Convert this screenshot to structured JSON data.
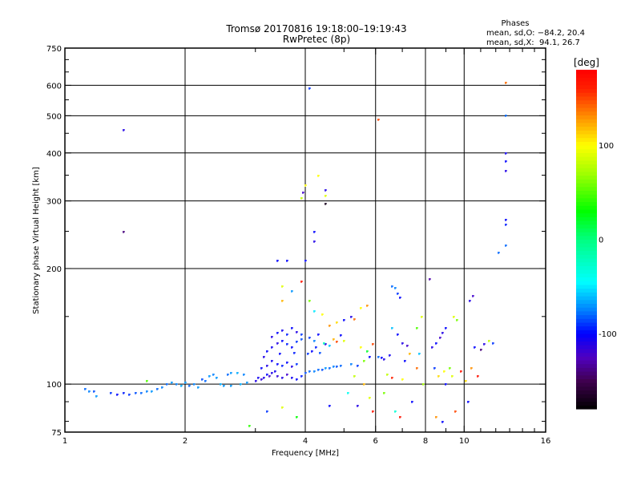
{
  "chart_data": {
    "type": "scatter",
    "title": "Tromsø 20170816 19:18:00–19:19:43",
    "subtitle": "RwPretec (8p)",
    "legend": {
      "heading": "Phases",
      "line_o": "mean, sd,O: −84.2, 20.4",
      "line_x": "mean, sd,X:  94.1, 26.7",
      "placement": "top-right"
    },
    "xlabel": "Frequency [MHz]",
    "ylabel": "Stationary phase Virtual Height [km]",
    "xscale": "log",
    "yscale": "log",
    "xlim": [
      1,
      16
    ],
    "ylim": [
      75,
      750
    ],
    "xticks": [
      1,
      2,
      4,
      6,
      8,
      10,
      16
    ],
    "xgrid": [
      2,
      4,
      6,
      8,
      10
    ],
    "yticks": [
      75,
      100,
      200,
      300,
      400,
      500,
      600,
      750
    ],
    "ygrid": [
      100,
      200,
      300,
      400,
      500,
      600
    ],
    "grid": true,
    "colorbar": {
      "label": "[deg]",
      "range": [
        -180,
        180
      ],
      "ticks": [
        100,
        0,
        -100
      ]
    },
    "point_fields": [
      "frequency_MHz",
      "height_km",
      "phase_deg"
    ],
    "points": [
      [
        1.12,
        97,
        -80
      ],
      [
        1.15,
        96,
        -75
      ],
      [
        1.18,
        96,
        -85
      ],
      [
        1.2,
        93,
        -70
      ],
      [
        1.3,
        95,
        -90
      ],
      [
        1.35,
        94,
        -100
      ],
      [
        1.4,
        95,
        -95
      ],
      [
        1.45,
        94,
        -90
      ],
      [
        1.5,
        95,
        -85
      ],
      [
        1.55,
        95,
        -80
      ],
      [
        1.6,
        96,
        -75
      ],
      [
        1.65,
        96,
        -70
      ],
      [
        1.7,
        97,
        -80
      ],
      [
        1.75,
        98,
        -75
      ],
      [
        1.8,
        100,
        -80
      ],
      [
        1.85,
        101,
        -70
      ],
      [
        1.9,
        100,
        -75
      ],
      [
        1.95,
        99,
        -65
      ],
      [
        2.0,
        101,
        -70
      ],
      [
        2.05,
        99,
        -80
      ],
      [
        2.1,
        100,
        -75
      ],
      [
        2.15,
        98,
        -70
      ],
      [
        2.2,
        103,
        -85
      ],
      [
        2.25,
        102,
        -80
      ],
      [
        2.3,
        105,
        -70
      ],
      [
        2.35,
        106,
        -75
      ],
      [
        2.4,
        104,
        -70
      ],
      [
        2.45,
        100,
        -65
      ],
      [
        2.5,
        99,
        -70
      ],
      [
        2.55,
        106,
        -80
      ],
      [
        2.6,
        107,
        -70
      ],
      [
        2.7,
        107,
        -65
      ],
      [
        2.8,
        106,
        -75
      ],
      [
        2.6,
        99,
        -70
      ],
      [
        2.75,
        100,
        -65
      ],
      [
        2.85,
        101,
        -70
      ],
      [
        3.0,
        102,
        -110
      ],
      [
        3.05,
        104,
        -105
      ],
      [
        3.1,
        103,
        -115
      ],
      [
        3.15,
        104,
        -110
      ],
      [
        3.2,
        106,
        -100
      ],
      [
        3.25,
        105,
        -120
      ],
      [
        3.3,
        107,
        -110
      ],
      [
        3.35,
        108,
        -105
      ],
      [
        3.1,
        110,
        -100
      ],
      [
        3.2,
        112,
        -110
      ],
      [
        3.3,
        115,
        -105
      ],
      [
        3.4,
        113,
        -100
      ],
      [
        3.5,
        112,
        -95
      ],
      [
        3.6,
        114,
        -100
      ],
      [
        3.7,
        111,
        -110
      ],
      [
        3.8,
        113,
        -90
      ],
      [
        3.2,
        122,
        -100
      ],
      [
        3.3,
        125,
        -105
      ],
      [
        3.4,
        128,
        -110
      ],
      [
        3.5,
        130,
        -100
      ],
      [
        3.6,
        127,
        -95
      ],
      [
        3.7,
        125,
        -100
      ],
      [
        3.8,
        129,
        -90
      ],
      [
        3.9,
        131,
        -85
      ],
      [
        3.3,
        133,
        -110
      ],
      [
        3.4,
        136,
        -100
      ],
      [
        3.5,
        138,
        -105
      ],
      [
        3.6,
        135,
        -95
      ],
      [
        3.7,
        140,
        -100
      ],
      [
        3.8,
        137,
        -110
      ],
      [
        3.9,
        135,
        -90
      ],
      [
        3.15,
        118,
        -110
      ],
      [
        3.45,
        120,
        -100
      ],
      [
        3.75,
        121,
        -95
      ],
      [
        3.4,
        105,
        -115
      ],
      [
        3.5,
        104,
        -110
      ],
      [
        3.6,
        106,
        -120
      ],
      [
        3.7,
        104,
        -105
      ],
      [
        3.8,
        103,
        -100
      ],
      [
        3.9,
        105,
        -95
      ],
      [
        4.0,
        107,
        -85
      ],
      [
        4.1,
        108,
        -80
      ],
      [
        4.2,
        108,
        -75
      ],
      [
        4.3,
        109,
        -80
      ],
      [
        4.4,
        109,
        -85
      ],
      [
        4.5,
        110,
        -70
      ],
      [
        4.6,
        110,
        -80
      ],
      [
        4.7,
        111,
        -75
      ],
      [
        4.8,
        111,
        -85
      ],
      [
        4.9,
        112,
        -80
      ],
      [
        4.05,
        120,
        -90
      ],
      [
        4.15,
        122,
        -100
      ],
      [
        4.25,
        125,
        -95
      ],
      [
        4.35,
        121,
        -85
      ],
      [
        4.5,
        127,
        -110
      ],
      [
        4.6,
        126,
        -60
      ],
      [
        4.1,
        132,
        -90
      ],
      [
        4.2,
        130,
        -75
      ],
      [
        4.3,
        135,
        -100
      ],
      [
        4.45,
        128,
        -20
      ],
      [
        4.7,
        131,
        120
      ],
      [
        4.8,
        129,
        150
      ],
      [
        4.9,
        134,
        -100
      ],
      [
        5.0,
        130,
        90
      ],
      [
        4.6,
        142,
        130
      ],
      [
        4.8,
        145,
        110
      ],
      [
        5.0,
        147,
        -100
      ],
      [
        5.2,
        150,
        -110
      ],
      [
        5.3,
        148,
        140
      ],
      [
        4.2,
        155,
        -50
      ],
      [
        4.4,
        152,
        100
      ],
      [
        4.1,
        165,
        60
      ],
      [
        5.2,
        113,
        -75
      ],
      [
        5.4,
        112,
        -90
      ],
      [
        5.6,
        115,
        60
      ],
      [
        5.8,
        118,
        -100
      ],
      [
        5.5,
        125,
        100
      ],
      [
        5.7,
        122,
        20
      ],
      [
        5.9,
        127,
        150
      ],
      [
        5.3,
        105,
        80
      ],
      [
        5.6,
        100,
        120
      ],
      [
        5.1,
        95,
        -40
      ],
      [
        5.8,
        92,
        90
      ],
      [
        5.4,
        88,
        -110
      ],
      [
        5.9,
        85,
        170
      ],
      [
        5.5,
        158,
        100
      ],
      [
        5.7,
        160,
        130
      ],
      [
        6.1,
        118,
        -80
      ],
      [
        6.2,
        117,
        -100
      ],
      [
        6.3,
        116,
        -110
      ],
      [
        6.5,
        119,
        -105
      ],
      [
        6.6,
        180,
        -80
      ],
      [
        6.7,
        178,
        -75
      ],
      [
        6.8,
        172,
        -90
      ],
      [
        6.9,
        168,
        -100
      ],
      [
        6.6,
        140,
        -60
      ],
      [
        6.8,
        135,
        -100
      ],
      [
        7.0,
        128,
        -110
      ],
      [
        7.2,
        126,
        -120
      ],
      [
        7.1,
        115,
        -100
      ],
      [
        7.3,
        120,
        120
      ],
      [
        6.4,
        106,
        80
      ],
      [
        6.6,
        104,
        160
      ],
      [
        7.0,
        103,
        100
      ],
      [
        6.3,
        95,
        60
      ],
      [
        6.7,
        85,
        -30
      ],
      [
        6.9,
        82,
        170
      ],
      [
        7.4,
        90,
        -100
      ],
      [
        7.6,
        140,
        50
      ],
      [
        7.8,
        150,
        90
      ],
      [
        7.6,
        110,
        140
      ],
      [
        7.7,
        120,
        -60
      ],
      [
        7.9,
        100,
        70
      ],
      [
        8.2,
        188,
        -130
      ],
      [
        8.3,
        125,
        -110
      ],
      [
        8.5,
        128,
        -100
      ],
      [
        8.7,
        132,
        -120
      ],
      [
        8.8,
        136,
        -110
      ],
      [
        9.0,
        140,
        -100
      ],
      [
        8.4,
        110,
        -90
      ],
      [
        8.6,
        105,
        110
      ],
      [
        8.9,
        108,
        100
      ],
      [
        9.2,
        110,
        60
      ],
      [
        9.4,
        150,
        90
      ],
      [
        9.6,
        147,
        60
      ],
      [
        9.0,
        100,
        -100
      ],
      [
        8.5,
        82,
        130
      ],
      [
        8.8,
        80,
        -100
      ],
      [
        9.5,
        85,
        150
      ],
      [
        9.3,
        105,
        90
      ],
      [
        9.8,
        108,
        170
      ],
      [
        10.1,
        102,
        110
      ],
      [
        10.3,
        165,
        -110
      ],
      [
        10.5,
        170,
        -120
      ],
      [
        10.6,
        125,
        -100
      ],
      [
        11.0,
        123,
        -140
      ],
      [
        11.2,
        127,
        -110
      ],
      [
        11.5,
        130,
        80
      ],
      [
        11.8,
        128,
        -90
      ],
      [
        10.4,
        110,
        130
      ],
      [
        10.8,
        105,
        170
      ],
      [
        10.2,
        90,
        -100
      ],
      [
        12.7,
        230,
        -80
      ],
      [
        12.7,
        260,
        -95
      ],
      [
        12.7,
        268,
        -100
      ],
      [
        12.7,
        380,
        -100
      ],
      [
        12.7,
        360,
        -110
      ],
      [
        12.7,
        400,
        -105
      ],
      [
        12.7,
        500,
        -80
      ],
      [
        12.7,
        610,
        140
      ],
      [
        12.2,
        220,
        -80
      ],
      [
        4.1,
        590,
        -90
      ],
      [
        4.3,
        350,
        100
      ],
      [
        4.0,
        330,
        100
      ],
      [
        3.95,
        315,
        -120
      ],
      [
        3.9,
        305,
        80
      ],
      [
        4.5,
        320,
        -110
      ],
      [
        4.5,
        310,
        90
      ],
      [
        4.5,
        295,
        -170
      ],
      [
        4.2,
        250,
        -100
      ],
      [
        4.2,
        235,
        -110
      ],
      [
        4.0,
        210,
        -100
      ],
      [
        3.6,
        210,
        -100
      ],
      [
        3.4,
        210,
        -100
      ],
      [
        3.9,
        185,
        170
      ],
      [
        1.4,
        460,
        -110
      ],
      [
        1.4,
        250,
        -140
      ],
      [
        6.1,
        490,
        150
      ],
      [
        3.5,
        180,
        90
      ],
      [
        3.5,
        165,
        120
      ],
      [
        3.7,
        175,
        -70
      ],
      [
        2.9,
        78,
        40
      ],
      [
        3.2,
        85,
        -90
      ],
      [
        3.5,
        87,
        90
      ],
      [
        3.8,
        82,
        30
      ],
      [
        4.6,
        88,
        -100
      ],
      [
        1.6,
        102,
        50
      ]
    ]
  }
}
